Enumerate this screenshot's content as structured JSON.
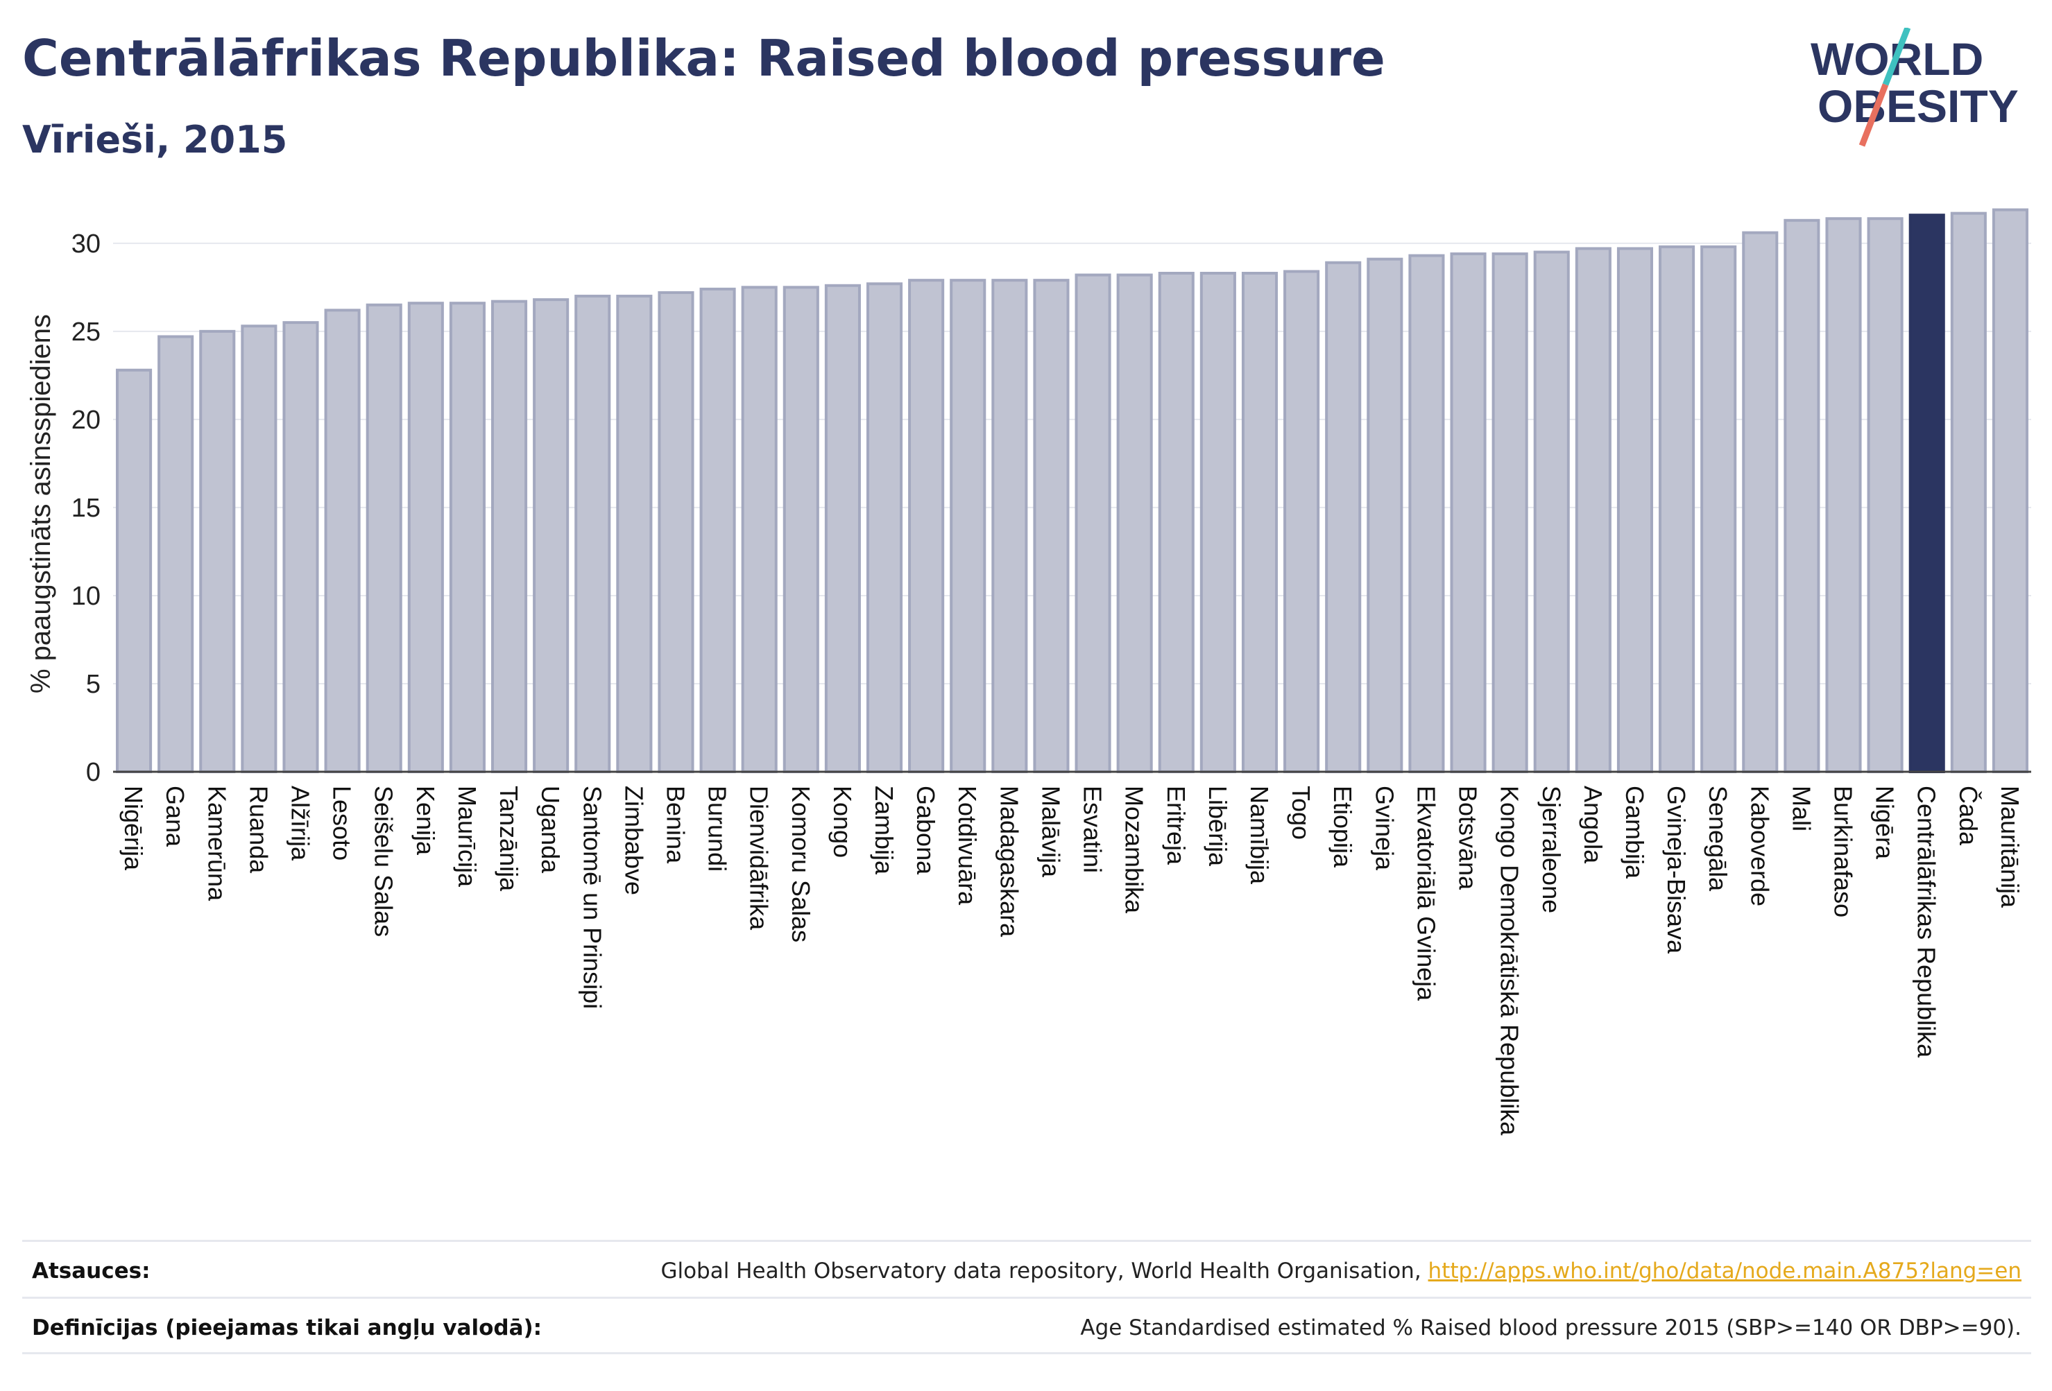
{
  "header": {
    "title": "Centrālāfrikas Republika: Raised blood pressure",
    "subtitle": "Vīrieši, 2015"
  },
  "logo": {
    "line1": "WORLD",
    "line2": "OBESITY"
  },
  "colors": {
    "bar": "#c0c3d2",
    "bar_stroke": "#a3a8bf",
    "highlight": "#2b3561",
    "title": "#2b3561",
    "link": "#e5a91c"
  },
  "chart_data": {
    "type": "bar",
    "ylabel": "% paaugstināts asinsspiediens",
    "ylim": [
      0,
      32
    ],
    "yticks": [
      0,
      5,
      10,
      15,
      20,
      25,
      30
    ],
    "grid": true,
    "highlight": "Centrālāfrikas Republika",
    "categories": [
      "Nigērija",
      "Gana",
      "Kamerūna",
      "Ruanda",
      "Alžīrija",
      "Lesoto",
      "Seišelu Salas",
      "Kenija",
      "Maurīcija",
      "Tanzānija",
      "Uganda",
      "Santomē un Prinsipi",
      "Zimbabve",
      "Benina",
      "Burundi",
      "Dienvidāfrika",
      "Komoru Salas",
      "Kongo",
      "Zambija",
      "Gabona",
      "Kotdivuāra",
      "Madagaskara",
      "Malāvija",
      "Esvatini",
      "Mozambika",
      "Eritreja",
      "Libērija",
      "Namībija",
      "Togo",
      "Etiopija",
      "Gvineja",
      "Ekvatoriālā Gvineja",
      "Botsvāna",
      "Kongo Demokrātiskā Republika",
      "Sjerraleone",
      "Angola",
      "Gambija",
      "Gvineja-Bisava",
      "Senegāla",
      "Kaboverde",
      "Mali",
      "Burkinafaso",
      "Nigēra",
      "Centrālāfrikas Republika",
      "Čada",
      "Mauritānija"
    ],
    "values": [
      22.8,
      24.7,
      25.0,
      25.3,
      25.5,
      26.2,
      26.5,
      26.6,
      26.6,
      26.7,
      26.8,
      27.0,
      27.0,
      27.2,
      27.4,
      27.5,
      27.5,
      27.6,
      27.7,
      27.9,
      27.9,
      27.9,
      27.9,
      28.2,
      28.2,
      28.3,
      28.3,
      28.3,
      28.4,
      28.9,
      29.1,
      29.3,
      29.4,
      29.4,
      29.5,
      29.7,
      29.7,
      29.8,
      29.8,
      30.6,
      31.3,
      31.4,
      31.4,
      31.6,
      31.7,
      31.9
    ]
  },
  "footer": {
    "sources_label": "Atsauces:",
    "sources_text": "Global Health Observatory data repository, World Health Organisation, ",
    "sources_link": "http://apps.who.int/gho/data/node.main.A875?lang=en",
    "definitions_label": "Definīcijas (pieejamas tikai angļu valodā):",
    "definitions_text": "Age Standardised estimated % Raised blood pressure 2015 (SBP>=140 OR DBP>=90)."
  }
}
